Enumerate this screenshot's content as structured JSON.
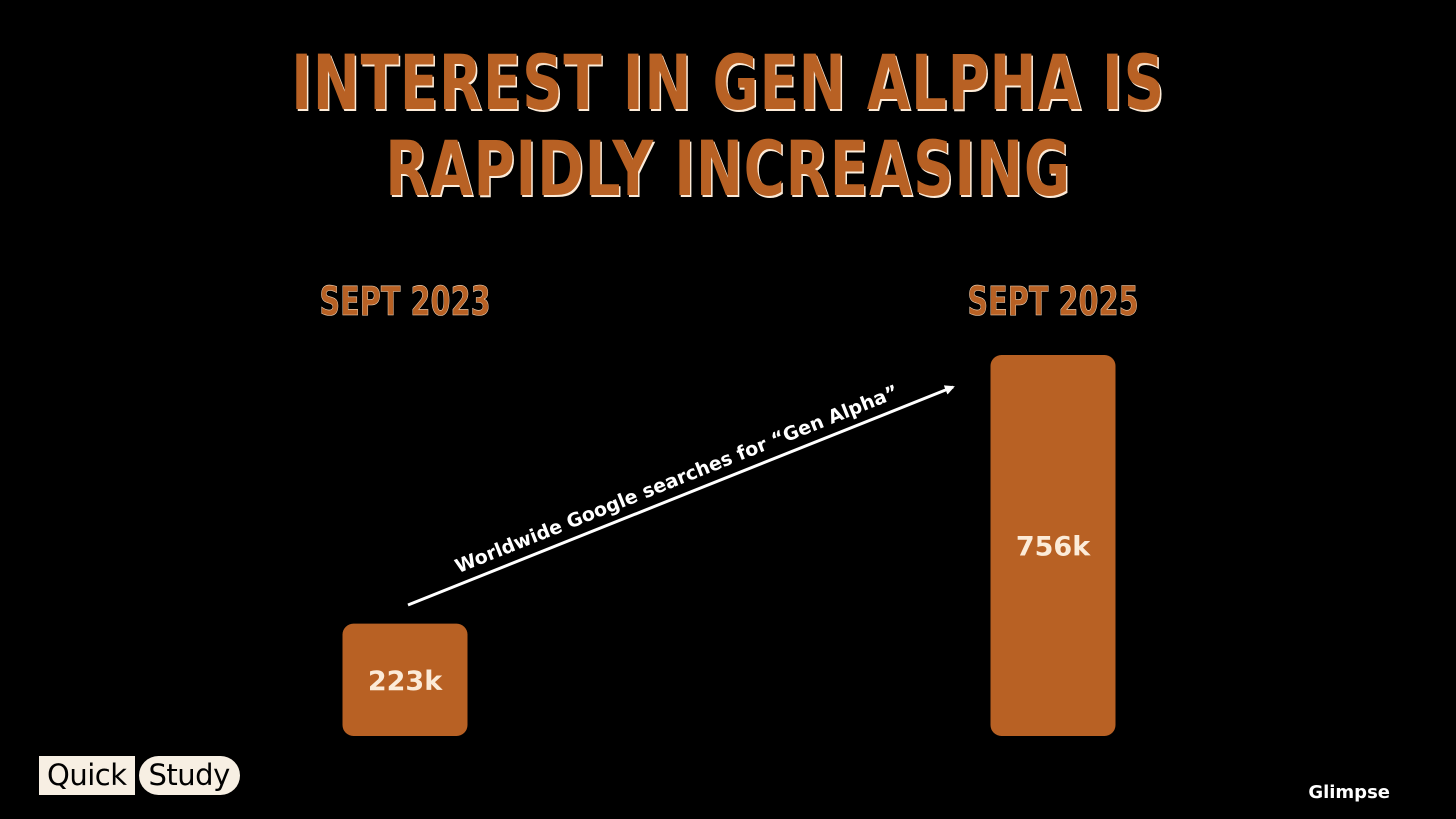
{
  "title_lines": [
    "INTEREST IN GEN ALPHA IS",
    "RAPIDLY INCREASING"
  ],
  "chart_data": {
    "type": "bar",
    "categories": [
      "SEPT 2023",
      "SEPT 2025"
    ],
    "values": [
      223,
      756
    ],
    "value_labels": [
      "223k",
      "756k"
    ],
    "annotation": "Worldwide Google searches for “Gen Alpha”",
    "bar_color": "#B86124",
    "grid": false,
    "legend": "none"
  },
  "logo": {
    "part1": "Quick",
    "part2": "Study"
  },
  "brand": "Glimpse"
}
